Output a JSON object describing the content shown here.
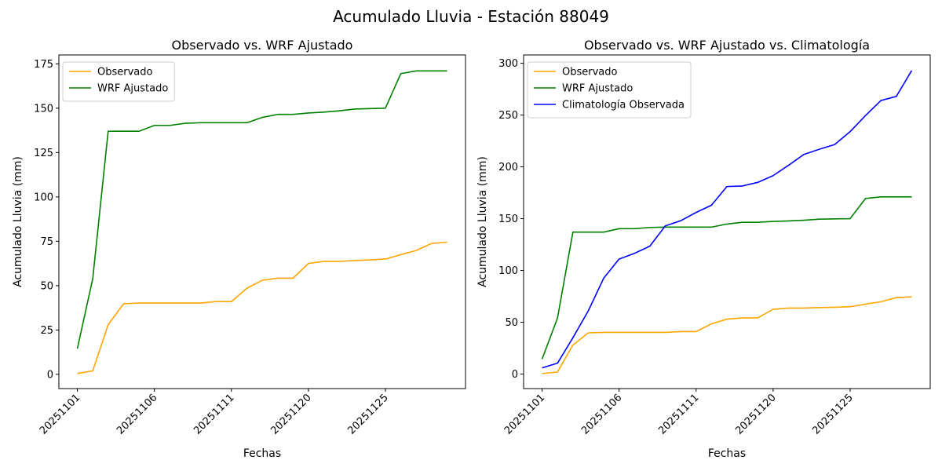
{
  "figure": {
    "suptitle": "Acumulado Lluvia - Estación 88049"
  },
  "colors": {
    "observado": "#ffa500",
    "wrf": "#008000",
    "clim": "#0000ff"
  },
  "chart_data": [
    {
      "type": "line",
      "title": "Observado vs. WRF Ajustado",
      "xlabel": "Fechas",
      "ylabel": "Acumulado Lluvia (mm)",
      "x": [
        1,
        2,
        3,
        4,
        5,
        6,
        7,
        8,
        9,
        10,
        11,
        12,
        13,
        14,
        15,
        16,
        17,
        18,
        19,
        20,
        21,
        22,
        23,
        24,
        25
      ],
      "xticks": [
        {
          "value": 1,
          "label": "20251101"
        },
        {
          "value": 6,
          "label": "20251106"
        },
        {
          "value": 11,
          "label": "20251111"
        },
        {
          "value": 16,
          "label": "20251120"
        },
        {
          "value": 21,
          "label": "20251125"
        }
      ],
      "xlim": [
        -0.2,
        26.2
      ],
      "ylim": [
        -8,
        180
      ],
      "yticks": [
        0,
        25,
        50,
        75,
        100,
        125,
        150,
        175
      ],
      "legend": "top-left",
      "series": [
        {
          "name": "Observado",
          "color": "#ffa500",
          "values": [
            0.5,
            2,
            28,
            39.8,
            40.2,
            40.2,
            40.2,
            40.2,
            40.2,
            41,
            41,
            48.5,
            53,
            54.2,
            54.2,
            62.5,
            63.7,
            63.7,
            64.2,
            64.5,
            65,
            67.5,
            69.8,
            73.8,
            74.5
          ]
        },
        {
          "name": "WRF Ajustado",
          "color": "#008000",
          "values": [
            14.5,
            54,
            137,
            137,
            137,
            140.3,
            140.3,
            141.5,
            141.8,
            141.8,
            141.8,
            141.8,
            144.8,
            146.5,
            146.5,
            147.3,
            147.8,
            148.5,
            149.5,
            149.8,
            150,
            169.5,
            171,
            171,
            171
          ]
        }
      ]
    },
    {
      "type": "line",
      "title": "Observado vs. WRF Ajustado vs. Climatología",
      "xlabel": "Fechas",
      "ylabel": "Acumulado Lluvia (mm)",
      "x": [
        1,
        2,
        3,
        4,
        5,
        6,
        7,
        8,
        9,
        10,
        11,
        12,
        13,
        14,
        15,
        16,
        17,
        18,
        19,
        20,
        21,
        22,
        23,
        24,
        25
      ],
      "xticks": [
        {
          "value": 1,
          "label": "20251101"
        },
        {
          "value": 6,
          "label": "20251106"
        },
        {
          "value": 11,
          "label": "20251111"
        },
        {
          "value": 16,
          "label": "20251120"
        },
        {
          "value": 21,
          "label": "20251125"
        }
      ],
      "xlim": [
        -0.2,
        26.2
      ],
      "ylim": [
        -14,
        308
      ],
      "yticks": [
        0,
        50,
        100,
        150,
        200,
        250,
        300
      ],
      "legend": "top-left",
      "series": [
        {
          "name": "Observado",
          "color": "#ffa500",
          "values": [
            0.5,
            2,
            28,
            39.8,
            40.2,
            40.2,
            40.2,
            40.2,
            40.2,
            41,
            41,
            48.5,
            53,
            54.2,
            54.2,
            62.5,
            63.7,
            63.7,
            64.2,
            64.5,
            65,
            67.5,
            69.8,
            73.8,
            74.5
          ]
        },
        {
          "name": "WRF Ajustado",
          "color": "#008000",
          "values": [
            14.5,
            54,
            137,
            137,
            137,
            140.3,
            140.3,
            141.5,
            141.8,
            141.8,
            141.8,
            141.8,
            144.8,
            146.5,
            146.5,
            147.3,
            147.8,
            148.5,
            149.5,
            149.8,
            150,
            169.5,
            171,
            171,
            171
          ]
        },
        {
          "name": "Climatología Observada",
          "color": "#0000ff",
          "values": [
            6,
            10.5,
            35,
            61,
            92.5,
            111,
            116.5,
            123.5,
            143,
            148,
            156,
            163,
            181,
            181.5,
            185,
            191.5,
            201.5,
            212,
            217,
            221.5,
            234,
            249.5,
            264,
            268,
            293
          ]
        }
      ]
    }
  ]
}
